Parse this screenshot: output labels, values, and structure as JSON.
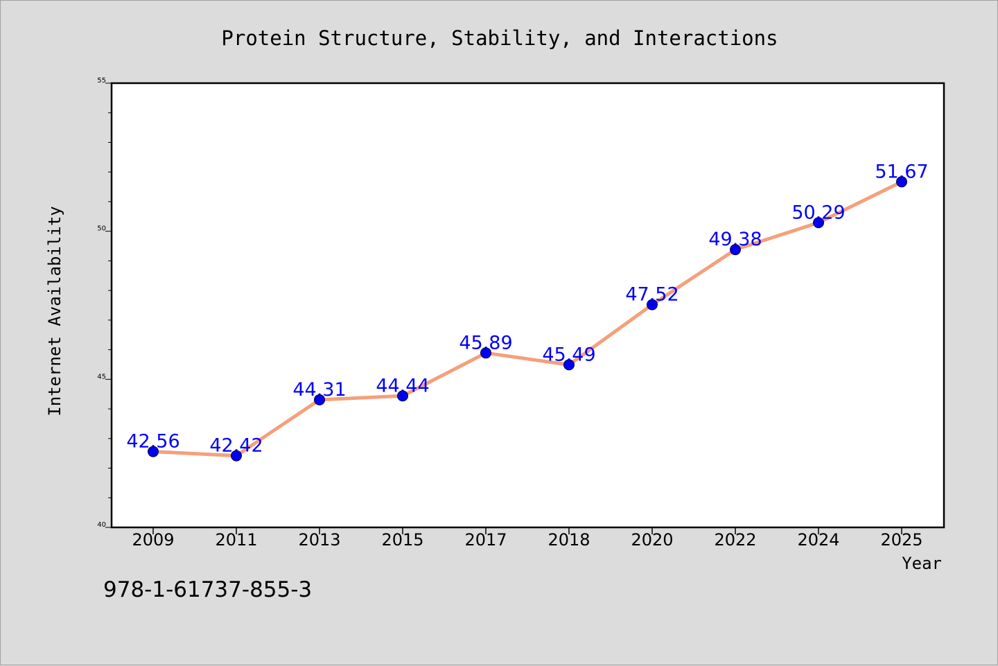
{
  "chart_data": {
    "type": "line",
    "title": "Protein Structure, Stability, and Interactions",
    "xlabel": "Year",
    "ylabel": "Internet Availability",
    "categories": [
      "2009",
      "2011",
      "2013",
      "2015",
      "2017",
      "2018",
      "2020",
      "2022",
      "2024",
      "2025"
    ],
    "series": [
      {
        "values": [
          42.56,
          42.42,
          44.31,
          44.44,
          45.89,
          45.49,
          47.52,
          49.38,
          50.29,
          51.67
        ]
      }
    ],
    "data_labels": [
      "42.56",
      "42.42",
      "44.31",
      "44.44",
      "45.89",
      "45.49",
      "47.52",
      "49.38",
      "50.29",
      "51.67"
    ],
    "ylim": [
      40,
      55
    ],
    "y_major_ticks": [
      40,
      45,
      50,
      55
    ],
    "y_minor_step": 1,
    "grid": false,
    "legend": "none",
    "colors": {
      "line": "#f4a07c",
      "marker": "#0000ee",
      "label": "#0000ff",
      "plot_bg": "#ffffff",
      "page_bg": "#dcdcdc"
    }
  },
  "footer": {
    "isbn": "978-1-61737-855-3"
  }
}
